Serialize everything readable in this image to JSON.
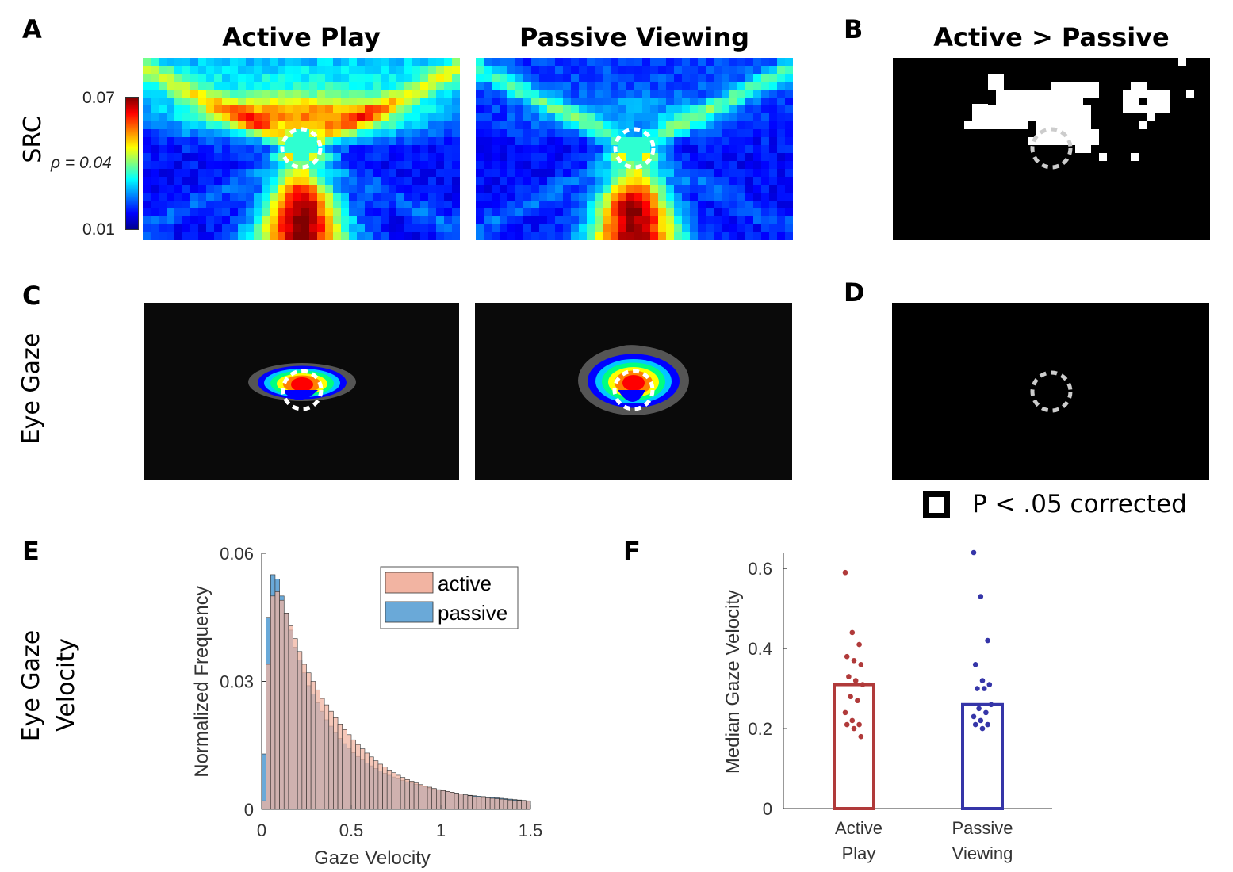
{
  "panels": {
    "A": "A",
    "B": "B",
    "C": "C",
    "D": "D",
    "E": "E",
    "F": "F"
  },
  "column_titles": {
    "active": "Active Play",
    "passive": "Passive Viewing",
    "contrast": "Active > Passive"
  },
  "row_labels": {
    "src": "SRC",
    "eye_gaze": "Eye Gaze",
    "velocity_line1": "Eye Gaze",
    "velocity_line2": "Velocity"
  },
  "colorbar": {
    "max": "0.07",
    "mid": "ρ = 0.04",
    "min": "0.01",
    "colormap": "jet"
  },
  "significance_legend": "P < .05 corrected",
  "chart_data": [
    {
      "type": "heatmap",
      "panel": "A",
      "subplots": [
        "Active Play",
        "Passive Viewing"
      ],
      "colorbar_ticks": [
        0.01,
        0.04,
        0.07
      ],
      "colorbar_label": "ρ",
      "vrange": [
        0.01,
        0.07
      ]
    },
    {
      "type": "heatmap",
      "panel": "B",
      "title": "Active > Passive",
      "binary": true,
      "legend": "P < .05 corrected"
    },
    {
      "type": "heatmap",
      "panel": "C",
      "subplots": [
        "Active Play",
        "Passive Viewing"
      ]
    },
    {
      "type": "heatmap",
      "panel": "D",
      "binary": true
    },
    {
      "type": "bar",
      "panel": "E",
      "subtype": "histogram",
      "xlabel": "Gaze Velocity",
      "ylabel": "Normalized Frequency",
      "xlim": [
        0,
        1.5
      ],
      "ylim": [
        0,
        0.06
      ],
      "xticks": [
        "0",
        "0.5",
        "1",
        "1.5"
      ],
      "yticks": [
        "0",
        "0.03",
        "0.06"
      ],
      "bin_width": 0.025,
      "legend_position": "top-right",
      "series": [
        {
          "name": "active",
          "color": "#f2b4a2",
          "values": [
            0.002,
            0.034,
            0.05,
            0.051,
            0.049,
            0.046,
            0.043,
            0.04,
            0.037,
            0.034,
            0.032,
            0.03,
            0.028,
            0.026,
            0.0245,
            0.023,
            0.0215,
            0.02,
            0.0187,
            0.0175,
            0.0163,
            0.0152,
            0.0142,
            0.0132,
            0.0123,
            0.0114,
            0.0106,
            0.0099,
            0.0092,
            0.0086,
            0.008,
            0.0075,
            0.007,
            0.0066,
            0.0062,
            0.0058,
            0.0055,
            0.0052,
            0.0049,
            0.0046,
            0.0044,
            0.0042,
            0.004,
            0.0038,
            0.0036,
            0.0034,
            0.0032,
            0.003,
            0.0029,
            0.0028,
            0.0027,
            0.0026,
            0.0025,
            0.0024,
            0.0023,
            0.0022,
            0.0021,
            0.0021,
            0.002,
            0.0019
          ]
        },
        {
          "name": "passive",
          "color": "#6aa9d8",
          "values": [
            0.013,
            0.045,
            0.055,
            0.054,
            0.05,
            0.046,
            0.042,
            0.038,
            0.035,
            0.032,
            0.029,
            0.027,
            0.025,
            0.023,
            0.021,
            0.0195,
            0.018,
            0.0166,
            0.0154,
            0.0143,
            0.0133,
            0.0124,
            0.0116,
            0.0109,
            0.0102,
            0.0096,
            0.009,
            0.0085,
            0.008,
            0.0076,
            0.0072,
            0.0068,
            0.0065,
            0.0062,
            0.0059,
            0.0056,
            0.0053,
            0.005,
            0.0048,
            0.0046,
            0.0044,
            0.0042,
            0.004,
            0.0038,
            0.0036,
            0.0034,
            0.0033,
            0.0032,
            0.0031,
            0.003,
            0.0029,
            0.0028,
            0.0027,
            0.0026,
            0.0025,
            0.0024,
            0.0023,
            0.0022,
            0.0021,
            0.002
          ]
        }
      ]
    },
    {
      "type": "bar",
      "panel": "F",
      "ylabel": "Median Gaze Velocity",
      "ylim": [
        0,
        0.64
      ],
      "yticks": [
        "0",
        "0.2",
        "0.4",
        "0.6"
      ],
      "categories": [
        "Active Play",
        "Passive Viewing"
      ],
      "category_lines": [
        [
          "Active",
          "Play"
        ],
        [
          "Passive",
          "Viewing"
        ]
      ],
      "values": [
        0.31,
        0.26
      ],
      "colors": [
        "#b03a3a",
        "#3535a8"
      ],
      "points": [
        [
          0.59,
          0.44,
          0.41,
          0.38,
          0.37,
          0.36,
          0.33,
          0.32,
          0.31,
          0.28,
          0.27,
          0.24,
          0.22,
          0.21,
          0.21,
          0.2,
          0.18
        ],
        [
          0.64,
          0.53,
          0.42,
          0.36,
          0.32,
          0.31,
          0.3,
          0.3,
          0.26,
          0.25,
          0.24,
          0.23,
          0.22,
          0.21,
          0.21,
          0.2
        ]
      ]
    }
  ]
}
